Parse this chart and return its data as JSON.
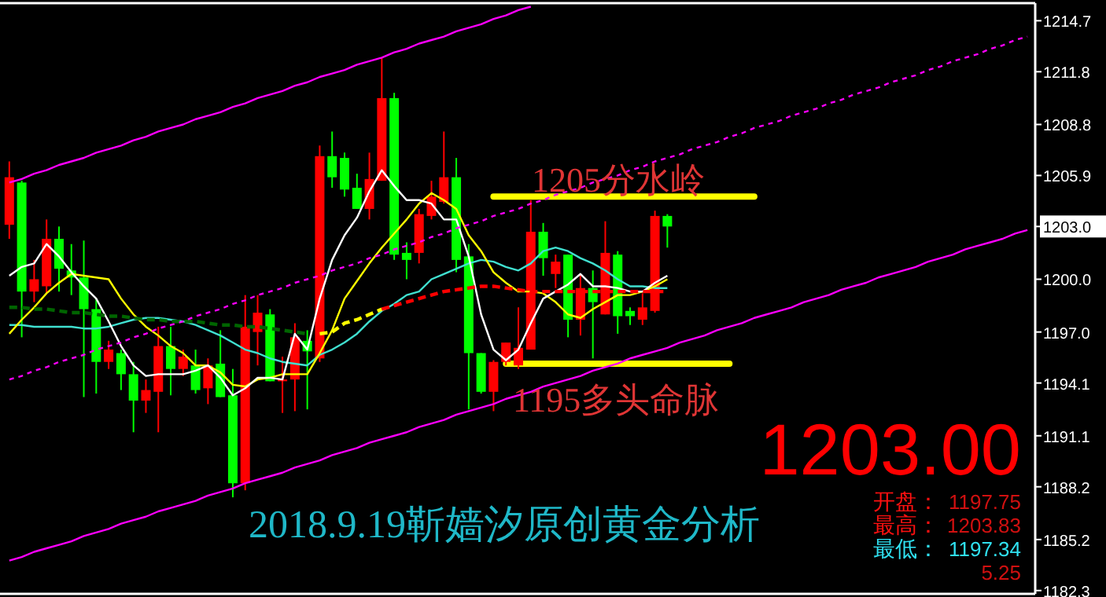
{
  "chart_data": {
    "type": "candlestick",
    "title": "2018.9.19靳嫱汐原创黄金分析",
    "categories": [
      null,
      null,
      null,
      null,
      null,
      null,
      null,
      null,
      null,
      null,
      null,
      null,
      null,
      null,
      null,
      null,
      null,
      null,
      null,
      null,
      null,
      null,
      null,
      null,
      null,
      null,
      null,
      null,
      null,
      null,
      null,
      null,
      null,
      null,
      null,
      null,
      null,
      null,
      null,
      null,
      null,
      null,
      null,
      null,
      null,
      null,
      null,
      null,
      null,
      null,
      null,
      null,
      null,
      null,
      null,
      null,
      null,
      null,
      null,
      null,
      null,
      null,
      null,
      null,
      null,
      null,
      null,
      null,
      null,
      null,
      null,
      null,
      null,
      null,
      null,
      null,
      null,
      null,
      null,
      null,
      null,
      null,
      null
    ],
    "ohlc": [
      [
        1203.1,
        1206.7,
        1202.3,
        1205.8
      ],
      [
        1205.5,
        1205.6,
        1196.7,
        1199.3
      ],
      [
        1199.3,
        1201.1,
        1198.7,
        1200.0
      ],
      [
        1199.6,
        1203.4,
        1199.2,
        1202.3
      ],
      [
        1202.3,
        1203.0,
        1199.3,
        1200.6
      ],
      [
        1200.5,
        1202.0,
        1199.1,
        1200.1
      ],
      [
        1200.1,
        1202.2,
        1193.3,
        1198.3
      ],
      [
        1198.3,
        1198.9,
        1193.5,
        1195.3
      ],
      [
        1195.3,
        1196.5,
        1194.9,
        1196.0
      ],
      [
        1195.8,
        1196.0,
        1193.7,
        1194.6
      ],
      [
        1194.6,
        1195.3,
        1191.3,
        1193.1
      ],
      [
        1193.1,
        1194.3,
        1192.4,
        1193.7
      ],
      [
        1193.6,
        1197.3,
        1191.3,
        1196.2
      ],
      [
        1196.2,
        1197.3,
        1193.4,
        1194.9
      ],
      [
        1194.9,
        1196.0,
        1194.5,
        1195.6
      ],
      [
        1195.1,
        1196.0,
        1193.5,
        1193.7
      ],
      [
        1193.8,
        1195.5,
        1192.9,
        1195.1
      ],
      [
        1195.2,
        1197.1,
        1193.3,
        1193.3
      ],
      [
        1193.4,
        1194.9,
        1187.6,
        1188.4
      ],
      [
        1188.4,
        1199.1,
        1188.0,
        1197.3
      ],
      [
        1197.0,
        1199.1,
        1195.1,
        1198.1
      ],
      [
        1198.0,
        1198.3,
        1194.2,
        1194.2
      ],
      [
        1194.2,
        1195.6,
        1192.4,
        1194.3
      ],
      [
        1194.3,
        1197.5,
        1192.5,
        1196.7
      ],
      [
        1196.5,
        1197.1,
        1192.6,
        1195.9
      ],
      [
        1195.5,
        1207.6,
        1195.3,
        1207.0
      ],
      [
        1207.0,
        1208.4,
        1205.2,
        1205.8
      ],
      [
        1206.9,
        1207.2,
        1204.7,
        1205.1
      ],
      [
        1205.2,
        1206.0,
        1204.0,
        1204.0
      ],
      [
        1204.0,
        1207.2,
        1203.4,
        1205.7
      ],
      [
        1205.6,
        1212.6,
        1205.6,
        1210.3
      ],
      [
        1210.3,
        1210.6,
        1201.1,
        1201.4
      ],
      [
        1201.5,
        1202.1,
        1200.0,
        1201.1
      ],
      [
        1201.5,
        1204.0,
        1200.9,
        1203.7
      ],
      [
        1203.6,
        1205.6,
        1203.4,
        1204.7
      ],
      [
        1204.4,
        1208.4,
        1204.3,
        1205.8
      ],
      [
        1205.8,
        1206.9,
        1200.4,
        1201.1
      ],
      [
        1201.3,
        1202.0,
        1192.6,
        1195.8
      ],
      [
        1195.8,
        1195.8,
        1193.5,
        1193.6
      ],
      [
        1193.6,
        1195.4,
        1192.5,
        1195.3
      ],
      [
        1195.3,
        1196.4,
        1195.1,
        1196.4
      ],
      [
        1195.1,
        1198.4,
        1194.9,
        1196.1
      ],
      [
        1196.0,
        1204.5,
        1196.0,
        1202.7
      ],
      [
        1202.7,
        1203.2,
        1200.2,
        1201.2
      ],
      [
        1200.3,
        1201.4,
        1199.5,
        1201.0
      ],
      [
        1201.4,
        1201.4,
        1196.7,
        1197.7
      ],
      [
        1197.7,
        1200.3,
        1196.8,
        1199.5
      ],
      [
        1199.5,
        1200.5,
        1195.5,
        1198.7
      ],
      [
        1198.0,
        1203.3,
        1198.0,
        1201.5
      ],
      [
        1201.4,
        1201.6,
        1196.9,
        1197.9
      ],
      [
        1198.2,
        1198.4,
        1197.4,
        1197.9
      ],
      [
        1197.7,
        1199.2,
        1197.4,
        1198.4
      ],
      [
        1198.2,
        1203.9,
        1198.1,
        1203.6
      ],
      [
        1203.6,
        1203.7,
        1201.8,
        1203.0
      ],
      null,
      null,
      null,
      null,
      null,
      null,
      null,
      null,
      null,
      null,
      null,
      null,
      null,
      null,
      null,
      null,
      null,
      null,
      null,
      null,
      null,
      null,
      null,
      null,
      null,
      null,
      null,
      null,
      null
    ],
    "colors": [
      "#ff0000",
      "#00ff00",
      "#ff0000",
      "#ff0000",
      "#00ff00",
      "#00ff00",
      "#00ff00",
      "#00ff00",
      "#ff0000",
      "#00ff00",
      "#00ff00",
      "#ff0000",
      "#ff0000",
      "#00ff00",
      "#ff0000",
      "#00ff00",
      "#ff0000",
      "#00ff00",
      "#00ff00",
      "#ff0000",
      "#ff0000",
      "#00ff00",
      "#ff0000",
      "#ff0000",
      "#00ff00",
      "#ff0000",
      "#00ff00",
      "#00ff00",
      "#00ff00",
      "#ff0000",
      "#ff0000",
      "#00ff00",
      "#00ff00",
      "#ff0000",
      "#ff0000",
      "#ff0000",
      "#00ff00",
      "#00ff00",
      "#00ff00",
      "#ff0000",
      "#ff0000",
      "#ff0000",
      "#ff0000",
      "#00ff00",
      "#ff0000",
      "#00ff00",
      "#ff0000",
      "#00ff00",
      "#ff0000",
      "#00ff00",
      "#00ff00",
      "#ff0000",
      "#ff0000",
      "#00ff00",
      null,
      null,
      null,
      null,
      null,
      null,
      null,
      null,
      null,
      null,
      null,
      null,
      null,
      null,
      null,
      null,
      null,
      null,
      null,
      null,
      null,
      null,
      null,
      null,
      null,
      null,
      null,
      null,
      null
    ],
    "series": [
      {
        "type": "line",
        "color": "#40e0d0",
        "values": [
          1197.4,
          1197.4,
          1197.3,
          1197.3,
          1197.3,
          1197.3,
          1197.2,
          1197.2,
          1197.3,
          1197.5,
          1197.7,
          1197.8,
          1197.8,
          1197.7,
          1197.6,
          1197.4,
          1197.1,
          1196.8,
          1196.4,
          1196.0,
          1195.8,
          1195.5,
          1195.3,
          1195.2,
          1195.1,
          1195.7,
          1196.0,
          1196.4,
          1196.9,
          1197.6,
          1198.2,
          1198.6,
          1199.1,
          1199.3,
          1200.0,
          1200.3,
          1200.6,
          1200.9,
          1201.1,
          1201.0,
          1200.7,
          1200.5,
          1200.9,
          1201.6,
          1201.8,
          1201.6,
          1201.2,
          1200.9,
          1200.5,
          1200.0,
          1199.6,
          1199.6,
          1199.5,
          1199.5,
          null,
          null,
          null,
          null,
          null,
          null,
          null,
          null,
          null,
          null,
          null,
          null,
          null,
          null,
          null,
          null,
          null,
          null,
          null,
          null,
          null,
          null,
          null,
          null,
          null,
          null,
          null,
          null,
          null
        ]
      },
      {
        "type": "line",
        "color": "#ffff00",
        "values": [
          1196.9,
          1197.7,
          1198.4,
          1199.2,
          1199.8,
          1200.3,
          1200.2,
          1200.1,
          1200.0,
          1198.9,
          1198.0,
          1197.3,
          1196.8,
          1196.2,
          1195.8,
          1195.1,
          1195.1,
          1194.7,
          1194.0,
          1193.9,
          1194.3,
          1194.4,
          1194.6,
          1194.6,
          1194.6,
          1195.8,
          1197.1,
          1198.9,
          1199.9,
          1200.9,
          1201.8,
          1202.6,
          1203.4,
          1204.3,
          1204.9,
          1204.5,
          1204.0,
          1202.5,
          1201.6,
          1200.4,
          1199.8,
          1199.3,
          1199.3,
          1199.2,
          1198.7,
          1198.0,
          1197.8,
          1198.3,
          1198.7,
          1199.1,
          1199.1,
          1199.3,
          1199.6,
          1200.0,
          null,
          null,
          null,
          null,
          null,
          null,
          null,
          null,
          null,
          null,
          null,
          null,
          null,
          null,
          null,
          null,
          null,
          null,
          null,
          null,
          null,
          null,
          null,
          null,
          null,
          null,
          null,
          null,
          null
        ]
      },
      {
        "type": "line",
        "color": "#ffffff",
        "values": [
          1200.2,
          1200.7,
          1200.9,
          1202.0,
          1201.3,
          1200.4,
          1199.6,
          1198.9,
          1197.6,
          1196.2,
          1195.1,
          1194.5,
          1194.6,
          1194.6,
          1194.6,
          1194.8,
          1195.1,
          1194.4,
          1193.4,
          1193.8,
          1194.4,
          1194.4,
          1194.3,
          1196.9,
          1196.0,
          1198.9,
          1201.1,
          1202.5,
          1203.5,
          1205.0,
          1206.2,
          1205.3,
          1204.5,
          1204.5,
          1204.3,
          1203.4,
          1203.4,
          1201.3,
          1198.0,
          1196.0,
          1195.4,
          1196.0,
          1197.5,
          1198.9,
          1199.3,
          1199.7,
          1200.3,
          1199.6,
          1199.6,
          1199.5,
          1199.3,
          1199.3,
          1199.8,
          1200.2,
          null,
          null,
          null,
          null,
          null,
          null,
          null,
          null,
          null,
          null,
          null,
          null,
          null,
          null,
          null,
          null,
          null,
          null,
          null,
          null,
          null,
          null,
          null,
          null,
          null,
          null,
          null,
          null,
          null
        ]
      },
      {
        "type": "line",
        "color": "#006400",
        "line_style": "dashed",
        "values": [
          1198.4,
          1198.4,
          1198.3,
          1198.3,
          1198.2,
          1198.1,
          1198.1,
          1198.0,
          1197.9,
          1197.9,
          1197.8,
          1197.7,
          1197.7,
          1197.6,
          1197.6,
          1197.6,
          1197.5,
          1197.4,
          1197.4,
          1197.3,
          1197.3,
          1197.2,
          1197.1,
          1197.0,
          1196.9,
          null,
          null,
          null,
          null,
          null,
          null,
          null,
          null,
          null,
          null,
          null,
          null,
          null,
          null,
          null,
          null,
          null,
          null,
          null,
          null,
          null,
          null,
          null,
          null,
          null,
          null,
          null,
          null,
          null,
          null,
          null,
          null,
          null,
          null,
          null,
          null,
          null,
          null,
          null,
          null,
          null,
          null,
          null,
          null,
          null,
          null,
          null,
          null,
          null,
          null,
          null,
          null,
          null,
          null,
          null,
          null,
          null,
          null
        ]
      },
      {
        "type": "line",
        "color": "#ffff00",
        "line_style": "dashed",
        "values": [
          null,
          null,
          null,
          null,
          null,
          null,
          null,
          null,
          null,
          null,
          null,
          null,
          null,
          null,
          null,
          null,
          null,
          null,
          null,
          null,
          null,
          null,
          null,
          null,
          null,
          1196.9,
          1197.0,
          1197.5,
          1197.7,
          1198.0,
          1198.3,
          null,
          null,
          null,
          null,
          null,
          null,
          null,
          null,
          null,
          null,
          null,
          null,
          null,
          null,
          null,
          null,
          null,
          null,
          null,
          null,
          null,
          null,
          null,
          null,
          null,
          null,
          null,
          null,
          null,
          null,
          null,
          null,
          null,
          null,
          null,
          null,
          null,
          null,
          null,
          null,
          null,
          null,
          null,
          null,
          null,
          null,
          null,
          null,
          null,
          null,
          null,
          null
        ]
      },
      {
        "type": "line",
        "color": "#ff0000",
        "line_style": "dashed",
        "values": [
          null,
          null,
          null,
          null,
          null,
          null,
          null,
          null,
          null,
          null,
          null,
          null,
          null,
          null,
          null,
          null,
          null,
          null,
          null,
          null,
          null,
          null,
          null,
          null,
          null,
          null,
          null,
          null,
          null,
          null,
          1198.3,
          1198.5,
          1198.7,
          1198.9,
          1199.1,
          1199.3,
          1199.4,
          1199.5,
          1199.6,
          1199.6,
          1199.5,
          1199.4,
          1199.3,
          1199.3,
          1199.3,
          1199.3,
          1199.3,
          1199.3,
          1199.3,
          1199.3,
          1199.3,
          1199.3,
          1199.3,
          1199.3,
          null,
          null,
          null,
          null,
          null,
          null,
          null,
          null,
          null,
          null,
          null,
          null,
          null,
          null,
          null,
          null,
          null,
          null,
          null,
          null,
          null,
          null,
          null,
          null,
          null,
          null,
          null,
          null,
          null
        ]
      },
      {
        "type": "line",
        "color": "#ff00ff",
        "values": [
          1205.5,
          1205.7,
          1206.0,
          1206.2,
          1206.5,
          1206.7,
          1206.9,
          1207.2,
          1207.4,
          1207.6,
          1207.9,
          1208.1,
          1208.4,
          1208.6,
          1208.8,
          1209.1,
          1209.3,
          1209.5,
          1209.8,
          1210.0,
          1210.3,
          1210.5,
          1210.7,
          1211.0,
          1211.2,
          1211.5,
          1211.7,
          1211.9,
          1212.2,
          1212.4,
          1212.6,
          1212.9,
          1213.1,
          1213.4,
          1213.6,
          1213.8,
          1214.1,
          1214.3,
          1214.5,
          1214.8,
          1215.0,
          1215.3,
          1215.5,
          null,
          null,
          null,
          null,
          null,
          null,
          null,
          null,
          null,
          null,
          null,
          null,
          null,
          null,
          null,
          null,
          null,
          null,
          null,
          null,
          null,
          null,
          null,
          null,
          null,
          null,
          null,
          null,
          null,
          null,
          null,
          null,
          null,
          null,
          null,
          null,
          null,
          null,
          null,
          null
        ]
      },
      {
        "type": "line",
        "color": "#ff00ff",
        "line_style": "dotted",
        "values": [
          1194.3,
          1194.5,
          1194.8,
          1195.0,
          1195.3,
          1195.5,
          1195.7,
          1196.0,
          1196.2,
          1196.4,
          1196.7,
          1196.9,
          1197.2,
          1197.4,
          1197.6,
          1197.9,
          1198.1,
          1198.3,
          1198.6,
          1198.8,
          1199.1,
          1199.3,
          1199.5,
          1199.8,
          1200.0,
          1200.2,
          1200.5,
          1200.7,
          1200.9,
          1201.2,
          1201.4,
          1201.7,
          1201.9,
          1202.1,
          1202.4,
          1202.6,
          1202.9,
          1203.1,
          1203.3,
          1203.6,
          1203.8,
          1204.0,
          1204.3,
          1204.5,
          1204.8,
          1205.0,
          1205.2,
          1205.5,
          1205.7,
          1205.9,
          1206.2,
          1206.4,
          1206.7,
          1206.9,
          1207.1,
          1207.4,
          1207.6,
          1207.8,
          1208.1,
          1208.3,
          1208.6,
          1208.8,
          1209.0,
          1209.3,
          1209.5,
          1209.7,
          1210.0,
          1210.2,
          1210.5,
          1210.7,
          1210.9,
          1211.2,
          1211.4,
          1211.6,
          1211.9,
          1212.1,
          1212.4,
          1212.6,
          1212.8,
          1213.1,
          1213.3,
          1213.6,
          1213.8
        ]
      },
      {
        "type": "line",
        "color": "#ff00ff",
        "values": [
          1184.0,
          1184.2,
          1184.5,
          1184.7,
          1184.9,
          1185.1,
          1185.4,
          1185.6,
          1185.8,
          1186.1,
          1186.3,
          1186.5,
          1186.8,
          1187.0,
          1187.2,
          1187.4,
          1187.7,
          1187.9,
          1188.1,
          1188.4,
          1188.6,
          1188.8,
          1189.0,
          1189.3,
          1189.5,
          1189.7,
          1190.0,
          1190.2,
          1190.4,
          1190.7,
          1190.9,
          1191.1,
          1191.3,
          1191.6,
          1191.8,
          1192.0,
          1192.3,
          1192.5,
          1192.7,
          1192.9,
          1193.2,
          1193.4,
          1193.6,
          1193.9,
          1194.1,
          1194.3,
          1194.5,
          1194.8,
          1195.0,
          1195.2,
          1195.5,
          1195.7,
          1195.9,
          1196.1,
          1196.4,
          1196.6,
          1196.8,
          1197.1,
          1197.3,
          1197.5,
          1197.8,
          1198.0,
          1198.2,
          1198.4,
          1198.7,
          1198.9,
          1199.1,
          1199.4,
          1199.6,
          1199.8,
          1200.1,
          1200.3,
          1200.5,
          1200.7,
          1201.0,
          1201.2,
          1201.4,
          1201.7,
          1201.9,
          1202.1,
          1202.3,
          1202.6,
          1202.8
        ]
      },
      {
        "type": "line",
        "color": "#ffff00",
        "values": [
          null,
          null,
          null,
          null,
          null,
          null,
          null,
          null,
          null,
          null,
          null,
          null,
          null,
          null,
          null,
          null,
          null,
          null,
          null,
          null,
          null,
          null,
          null,
          null,
          null,
          null,
          null,
          null,
          null,
          null,
          null,
          null,
          null,
          null,
          null,
          null,
          null,
          null,
          null,
          1204.7,
          1204.7,
          1204.7,
          1204.7,
          1204.7,
          1204.7,
          1204.7,
          1204.7,
          1204.7,
          1204.7,
          1204.7,
          1204.7,
          1204.7,
          1204.7,
          1204.7,
          1204.7,
          1204.7,
          1204.7,
          1204.7,
          1204.7,
          1204.7,
          1204.7,
          null,
          null,
          null,
          null,
          null,
          null,
          null,
          null,
          null,
          null,
          null,
          null,
          null,
          null,
          null,
          null,
          null,
          null,
          null,
          null,
          null,
          null
        ]
      },
      {
        "type": "line",
        "color": "#ffff00",
        "values": [
          null,
          null,
          null,
          null,
          null,
          null,
          null,
          null,
          null,
          null,
          null,
          null,
          null,
          null,
          null,
          null,
          null,
          null,
          null,
          null,
          null,
          null,
          null,
          null,
          null,
          null,
          null,
          null,
          null,
          null,
          null,
          null,
          null,
          null,
          null,
          null,
          null,
          null,
          null,
          null,
          1195.2,
          1195.2,
          1195.2,
          1195.2,
          1195.2,
          1195.2,
          1195.2,
          1195.2,
          1195.2,
          1195.2,
          1195.2,
          1195.2,
          1195.2,
          1195.2,
          1195.2,
          1195.2,
          1195.2,
          1195.2,
          1195.2,
          null,
          null,
          null,
          null,
          null,
          null,
          null,
          null,
          null,
          null,
          null,
          null,
          null,
          null,
          null,
          null,
          null,
          null,
          null,
          null,
          null,
          null,
          null,
          null
        ]
      }
    ],
    "ylim": [
      1182.2,
      1215.7
    ],
    "yticks": [
      1214.7,
      1211.8,
      1208.8,
      1205.9,
      {
        "value": 1203.0,
        "label": "1203.0"
      },
      {
        "value": 1200.0,
        "label": "1200.0"
      },
      {
        "value": 1197.0,
        "label": "1197.0"
      },
      1194.1,
      1191.1,
      1188.2,
      1185.2,
      1182.3
    ],
    "tick_labels": "y",
    "annotations": [
      "1205分水岭",
      "1195多头命脉",
      "1203.00",
      "开盘：",
      "1197.75",
      "最高：",
      "1203.83",
      "最低：",
      "1197.34",
      "5.25"
    ]
  }
}
